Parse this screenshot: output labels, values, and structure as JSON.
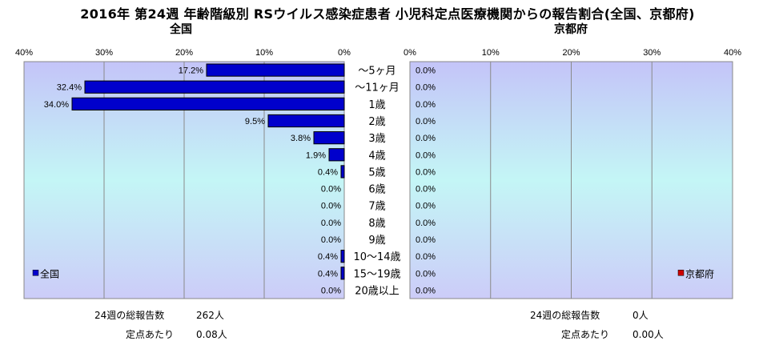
{
  "title": "2016年 第24週 年齢階級別 RSウイルス感染症患者 小児科定点医療機関からの報告割合(全国、京都府)",
  "chart_data": [
    {
      "type": "bar",
      "orientation": "horizontal",
      "title": "全国",
      "categories": [
        "～5ヶ月",
        "～11ヶ月",
        "1歳",
        "2歳",
        "3歳",
        "4歳",
        "5歳",
        "6歳",
        "7歳",
        "8歳",
        "9歳",
        "10～14歳",
        "15～19歳",
        "20歳以上"
      ],
      "series": [
        {
          "name": "全国",
          "values": [
            17.2,
            32.4,
            34.0,
            9.5,
            3.8,
            1.9,
            0.4,
            0.0,
            0.0,
            0.0,
            0.0,
            0.4,
            0.4,
            0.0
          ]
        }
      ],
      "data_labels": [
        "17.2%",
        "32.4%",
        "34.0%",
        "9.5%",
        "3.8%",
        "1.9%",
        "0.4%",
        "0.0%",
        "0.0%",
        "0.0%",
        "0.0%",
        "0.4%",
        "0.4%",
        "0.0%"
      ],
      "xlim": [
        0,
        40
      ],
      "x_reversed": true,
      "x_ticks": [
        "40%",
        "30%",
        "20%",
        "10%",
        "0%"
      ],
      "legend_position": "bottom-left",
      "bar_color": "#0000cc",
      "grid": true
    },
    {
      "type": "bar",
      "orientation": "horizontal",
      "title": "京都府",
      "categories": [
        "～5ヶ月",
        "～11ヶ月",
        "1歳",
        "2歳",
        "3歳",
        "4歳",
        "5歳",
        "6歳",
        "7歳",
        "8歳",
        "9歳",
        "10～14歳",
        "15～19歳",
        "20歳以上"
      ],
      "series": [
        {
          "name": "京都府",
          "values": [
            0,
            0,
            0,
            0,
            0,
            0,
            0,
            0,
            0,
            0,
            0,
            0,
            0,
            0
          ]
        }
      ],
      "data_labels": [
        "0.0%",
        "0.0%",
        "0.0%",
        "0.0%",
        "0.0%",
        "0.0%",
        "0.0%",
        "0.0%",
        "0.0%",
        "0.0%",
        "0.0%",
        "0.0%",
        "0.0%",
        "0.0%"
      ],
      "xlim": [
        0,
        40
      ],
      "x_reversed": false,
      "x_ticks": [
        "0%",
        "10%",
        "20%",
        "30%",
        "40%"
      ],
      "legend_position": "bottom-right",
      "bar_color": "#cc0000",
      "grid": true
    }
  ],
  "footer": {
    "national": {
      "total_label": "24週の総報告数",
      "total_value": "262人",
      "per_label": "定点あたり",
      "per_value": "0.08人"
    },
    "kyoto": {
      "total_label": "24週の総報告数",
      "total_value": "0人",
      "per_label": "定点あたり",
      "per_value": "0.00人"
    }
  }
}
